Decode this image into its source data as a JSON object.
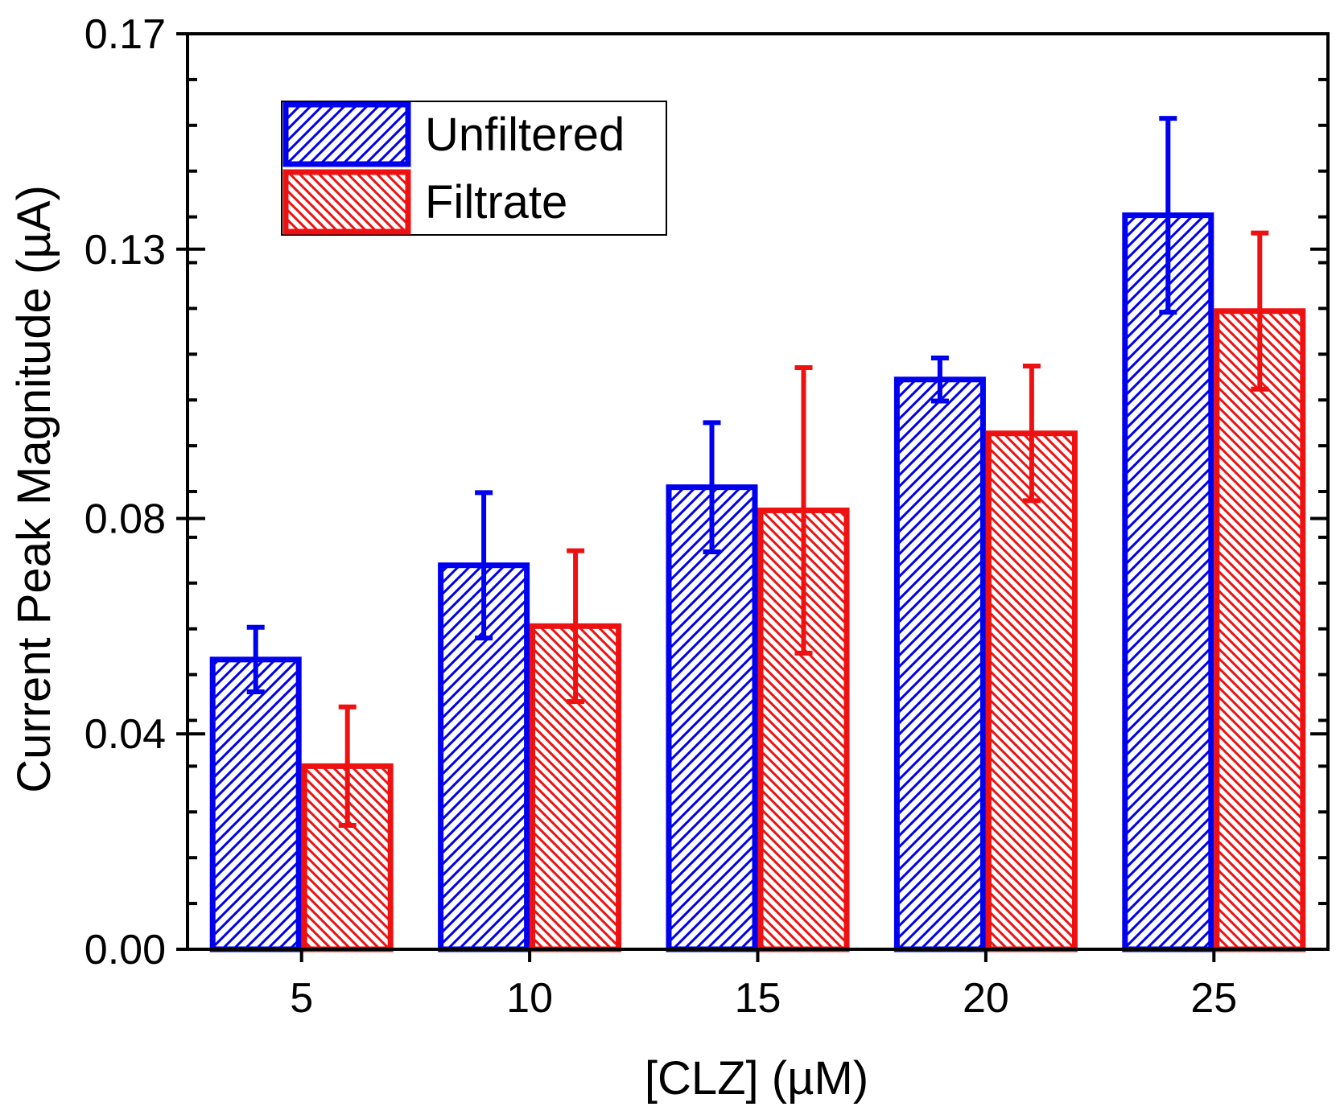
{
  "chart_data": {
    "type": "bar",
    "title": "",
    "xlabel": "[CLZ] (µM)",
    "ylabel": "Current Peak Magnitude (µA)",
    "categories": [
      "5",
      "10",
      "15",
      "20",
      "25"
    ],
    "ylim": [
      0.0,
      0.17
    ],
    "y_ticks": [
      0.0,
      0.04,
      0.08,
      0.13,
      0.17
    ],
    "y_tick_labels": [
      "0.00",
      "0.04",
      "0.08",
      "0.13",
      "0.17"
    ],
    "y_minor_step": 0.0085,
    "grid": false,
    "legend_position": "top-left",
    "series": [
      {
        "name": "Unfiltered",
        "color": "#0000ee",
        "pattern": "diagonal-hatch",
        "values": [
          0.0538,
          0.0713,
          0.0858,
          0.1058,
          0.1363
        ],
        "errors": [
          0.006,
          0.0135,
          0.012,
          0.004,
          0.018
        ]
      },
      {
        "name": "Filtrate",
        "color": "#ee1111",
        "pattern": "diagonal-hatch",
        "values": [
          0.034,
          0.06,
          0.0815,
          0.0958,
          0.1185
        ],
        "errors": [
          0.011,
          0.014,
          0.0265,
          0.0125,
          0.0145
        ]
      }
    ]
  }
}
